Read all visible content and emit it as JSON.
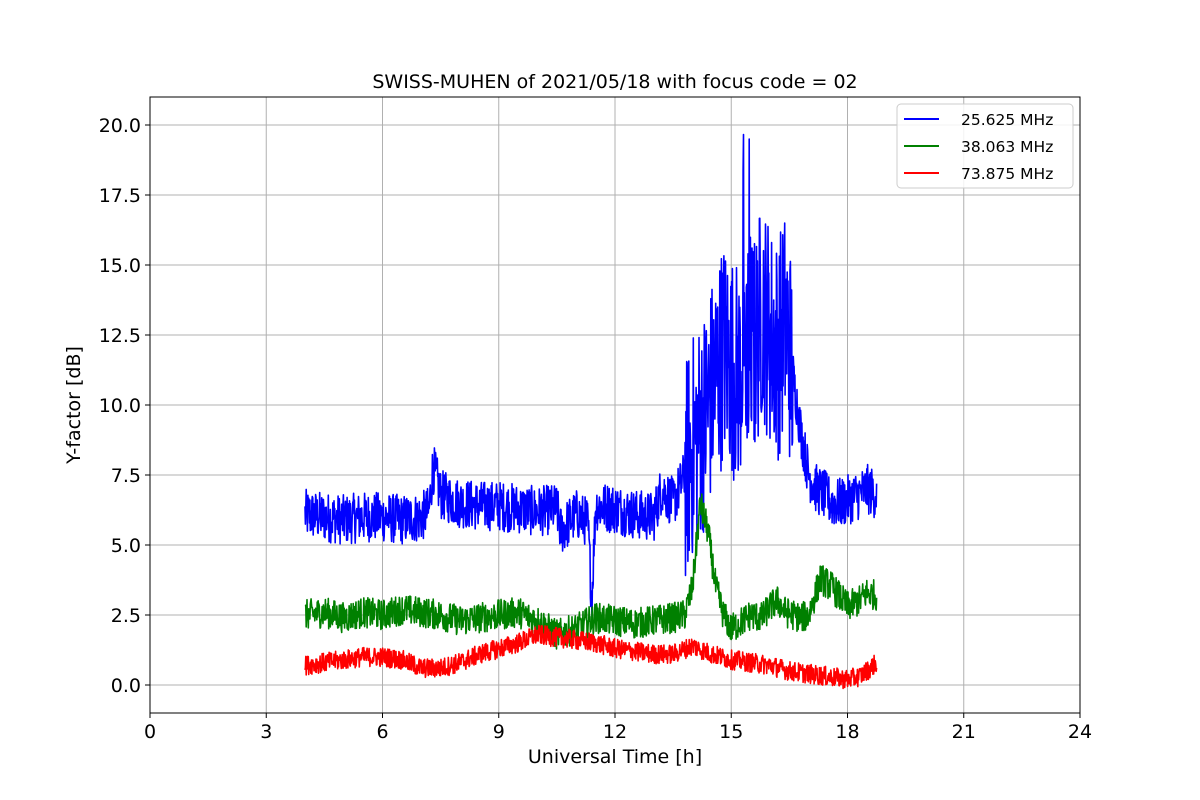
{
  "chart_data": {
    "type": "line",
    "title": "SWISS-MUHEN of 2021/05/18 with focus code = 02",
    "xlabel": "Universal Time [h]",
    "ylabel": "Y-factor [dB]",
    "xlim": [
      0,
      24
    ],
    "ylim": [
      -1,
      21
    ],
    "xticks": [
      0,
      3,
      6,
      9,
      12,
      15,
      18,
      21,
      24
    ],
    "xtick_labels": [
      "0",
      "3",
      "6",
      "9",
      "12",
      "15",
      "18",
      "21",
      "24"
    ],
    "yticks": [
      0,
      2.5,
      5,
      7.5,
      10,
      12.5,
      15,
      17.5,
      20
    ],
    "ytick_labels": [
      "0.0",
      "2.5",
      "5.0",
      "7.5",
      "10.0",
      "12.5",
      "15.0",
      "17.5",
      "20.0"
    ],
    "grid": true,
    "legend_position": "top-right",
    "series": [
      {
        "name": "25.625 MHz",
        "color": "#0000ff",
        "x": [
          4.0,
          4.5,
          5.0,
          5.5,
          6.0,
          6.5,
          7.0,
          7.2,
          7.3,
          7.5,
          7.8,
          8.0,
          8.5,
          9.0,
          9.5,
          10.0,
          10.5,
          10.6,
          11.0,
          11.3,
          11.4,
          11.5,
          12.0,
          12.5,
          13.0,
          13.2,
          13.5,
          13.8,
          14.0,
          14.3,
          14.5,
          14.8,
          15.0,
          15.2,
          15.4,
          15.6,
          15.8,
          16.0,
          16.2,
          16.4,
          16.6,
          16.8,
          17.0,
          17.2,
          17.4,
          17.6,
          17.8,
          18.0,
          18.3,
          18.5,
          18.75
        ],
        "y": [
          6.1,
          6.0,
          5.9,
          6.0,
          6.0,
          5.9,
          6.0,
          6.2,
          7.8,
          6.8,
          6.6,
          6.5,
          6.4,
          6.4,
          6.3,
          6.2,
          6.3,
          5.5,
          6.1,
          5.8,
          3.0,
          6.4,
          6.3,
          6.1,
          6.0,
          7.0,
          6.5,
          7.5,
          8.5,
          9.5,
          10.5,
          12.0,
          11.5,
          11.0,
          12.5,
          12.0,
          13.5,
          12.5,
          12.0,
          13.0,
          11.0,
          9.0,
          7.5,
          7.0,
          6.8,
          6.5,
          6.5,
          6.6,
          6.8,
          7.0,
          6.8
        ]
      },
      {
        "name": "38.063 MHz",
        "color": "#008000",
        "x": [
          4.0,
          4.5,
          5.0,
          5.5,
          6.0,
          6.5,
          7.0,
          7.5,
          8.0,
          8.5,
          9.0,
          9.5,
          10.0,
          10.5,
          11.0,
          11.5,
          12.0,
          12.5,
          13.0,
          13.5,
          13.8,
          14.0,
          14.2,
          14.4,
          14.6,
          14.8,
          15.0,
          15.2,
          15.5,
          15.8,
          16.0,
          16.2,
          16.4,
          16.6,
          16.8,
          17.0,
          17.3,
          17.6,
          18.0,
          18.3,
          18.5,
          18.75
        ],
        "y": [
          2.5,
          2.6,
          2.4,
          2.6,
          2.5,
          2.7,
          2.6,
          2.5,
          2.3,
          2.4,
          2.5,
          2.6,
          2.3,
          1.8,
          2.0,
          2.4,
          2.3,
          2.2,
          2.3,
          2.4,
          2.5,
          3.5,
          6.5,
          5.5,
          3.5,
          2.5,
          2.0,
          2.2,
          2.5,
          2.4,
          2.8,
          3.0,
          2.6,
          2.5,
          2.4,
          2.5,
          3.8,
          3.5,
          2.8,
          3.0,
          3.3,
          3.2
        ]
      },
      {
        "name": "73.875 MHz",
        "color": "#ff0000",
        "x": [
          4.0,
          4.5,
          5.0,
          5.5,
          6.0,
          6.5,
          7.0,
          7.5,
          8.0,
          8.5,
          9.0,
          9.5,
          10.0,
          10.5,
          11.0,
          11.5,
          12.0,
          12.5,
          13.0,
          13.5,
          14.0,
          14.5,
          15.0,
          15.5,
          16.0,
          16.5,
          17.0,
          17.5,
          18.0,
          18.3,
          18.5,
          18.75
        ],
        "y": [
          0.7,
          0.8,
          0.9,
          1.0,
          1.0,
          0.9,
          0.6,
          0.6,
          0.8,
          1.1,
          1.3,
          1.5,
          1.8,
          1.7,
          1.6,
          1.5,
          1.3,
          1.2,
          1.1,
          1.1,
          1.4,
          1.1,
          0.9,
          0.8,
          0.7,
          0.5,
          0.4,
          0.3,
          0.2,
          0.3,
          0.5,
          0.8
        ]
      }
    ]
  }
}
